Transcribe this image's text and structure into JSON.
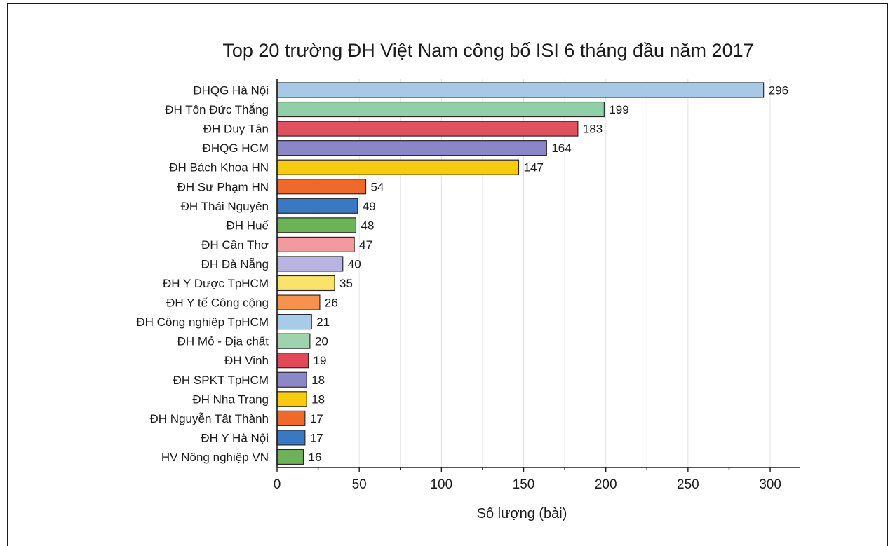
{
  "chart_data": {
    "type": "bar",
    "orientation": "horizontal",
    "title": "Top 20 trường ĐH Việt Nam công bố ISI 6 tháng đầu năm 2017",
    "xlabel": "Số lượng (bài)",
    "ylabel": "",
    "xlim": [
      0,
      320
    ],
    "xticks": [
      "0",
      "50",
      "100",
      "150",
      "200",
      "250",
      "300"
    ],
    "xtick_values": [
      0,
      50,
      100,
      150,
      200,
      250,
      300
    ],
    "grid": "vertical",
    "categories": [
      "ĐHQG Hà Nội",
      "ĐH Tôn Đức Thắng",
      "ĐH Duy Tân",
      "ĐHQG HCM",
      "ĐH Bách Khoa HN",
      "ĐH Sư Phạm HN",
      "ĐH Thái Nguyên",
      "ĐH Huế",
      "ĐH Cần Thơ",
      "ĐH Đà Nẵng",
      "ĐH Y Dược TpHCM",
      "ĐH Y tế Công cộng",
      "ĐH Công nghiệp TpHCM",
      "ĐH Mỏ - Địa chất",
      "ĐH Vinh",
      "ĐH SPKT TpHCM",
      "ĐH Nha Trang",
      "ĐH Nguyễn Tất Thành",
      "ĐH Y Hà Nội",
      "HV Nông nghiệp VN"
    ],
    "values": [
      296,
      199,
      183,
      164,
      147,
      54,
      49,
      48,
      47,
      40,
      35,
      26,
      21,
      20,
      19,
      18,
      18,
      17,
      17,
      16
    ],
    "value_labels": [
      "296",
      "199",
      "183",
      "164",
      "147",
      "54",
      "49",
      "48",
      "47",
      "40",
      "35",
      "26",
      "21",
      "20",
      "19",
      "18",
      "18",
      "17",
      "17",
      "16"
    ],
    "colors": [
      "#a8c8e8",
      "#8fd0a8",
      "#e0525e",
      "#8a86c8",
      "#f7cc10",
      "#ee6a2c",
      "#3a78c4",
      "#6bb356",
      "#f29a9e",
      "#b8b4e2",
      "#fbe26c",
      "#f6924e",
      "#a8cbe9",
      "#9fd3ae",
      "#e04a58",
      "#8c88c8",
      "#f7cc10",
      "#ef6a2a",
      "#3a78c4",
      "#6bb356"
    ]
  }
}
